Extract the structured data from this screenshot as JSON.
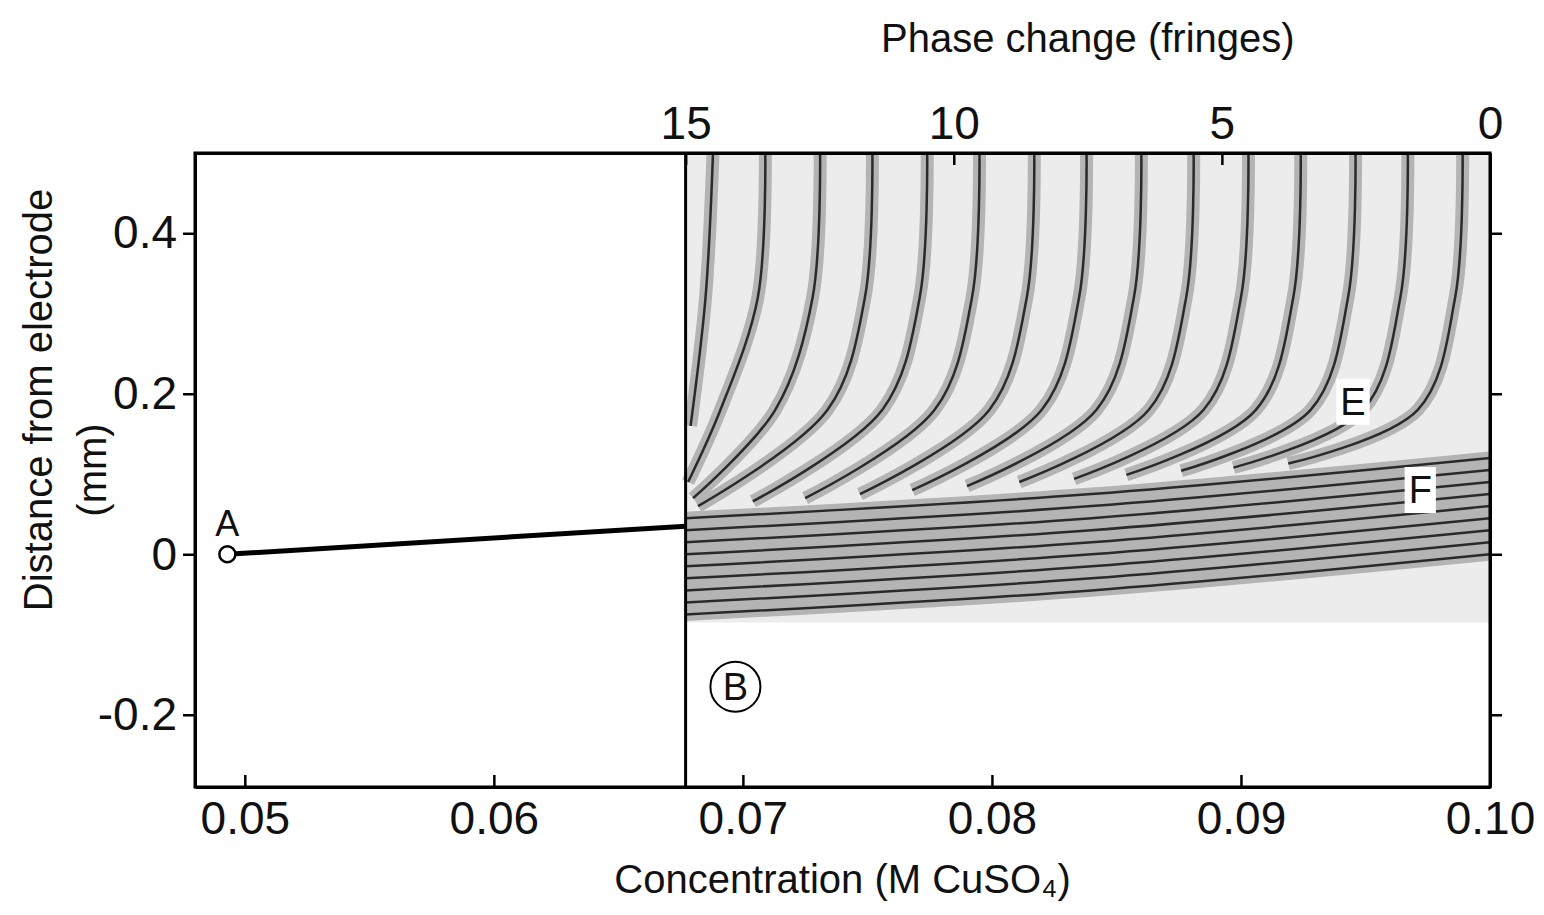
{
  "chart_data": {
    "type": "interferogram",
    "x2label": "Phase change (fringes)",
    "xlabel": "Concentration (M CuSO₄)",
    "ylabel": [
      "Distance from electrode",
      "(mm)"
    ],
    "xlim": [
      0.048,
      0.1
    ],
    "xticks": [
      0.05,
      0.06,
      0.07,
      0.08,
      0.09,
      {
        "value": 0.1,
        "label": "0.10"
      }
    ],
    "ylim": [
      -0.29,
      0.5
    ],
    "yticks": [
      -0.2,
      0,
      0.2,
      0.4
    ],
    "x2lim": [
      24.15,
      0
    ],
    "x2ticks": [
      15,
      10,
      5,
      0
    ],
    "image_region": {
      "xlim": [
        0.0677,
        0.1
      ],
      "ylim": [
        -0.085,
        0.5
      ]
    },
    "line": {
      "x": [
        0.0493,
        0.0677
      ],
      "y": [
        0,
        0.035
      ]
    },
    "points": [
      {
        "text": "A",
        "x": 0.0493,
        "y": 0,
        "marker": "circle"
      }
    ],
    "annotations": [
      {
        "text": "B",
        "x": 0.0697,
        "y": -0.165,
        "marker": "circle"
      },
      {
        "text": "E",
        "x": 0.0945,
        "y": 0.19
      },
      {
        "text": "F",
        "x": 0.0972,
        "y": 0.08
      }
    ],
    "fringes": [
      {
        "x": [
          0.0688,
          0.0685,
          0.0679
        ],
        "y": [
          0.5,
          0.32,
          0.16
        ]
      },
      {
        "x": [
          0.0709,
          0.0706,
          0.0691,
          0.0678
        ],
        "y": [
          0.5,
          0.32,
          0.18,
          0.09
        ]
      },
      {
        "x": [
          0.0731,
          0.0728,
          0.0713,
          0.068
        ],
        "y": [
          0.5,
          0.32,
          0.18,
          0.07
        ]
      },
      {
        "x": [
          0.0752,
          0.0749,
          0.0734,
          0.0682
        ],
        "y": [
          0.5,
          0.32,
          0.18,
          0.06
        ]
      },
      {
        "x": [
          0.0774,
          0.0771,
          0.0756,
          0.0704
        ],
        "y": [
          0.5,
          0.32,
          0.18,
          0.066
        ]
      },
      {
        "x": [
          0.0795,
          0.0792,
          0.0777,
          0.0725
        ],
        "y": [
          0.5,
          0.32,
          0.18,
          0.07
        ]
      },
      {
        "x": [
          0.0817,
          0.0814,
          0.0799,
          0.0747
        ],
        "y": [
          0.5,
          0.32,
          0.18,
          0.075
        ]
      },
      {
        "x": [
          0.0838,
          0.0835,
          0.082,
          0.0768
        ],
        "y": [
          0.5,
          0.32,
          0.18,
          0.08
        ]
      },
      {
        "x": [
          0.086,
          0.0857,
          0.0842,
          0.079
        ],
        "y": [
          0.5,
          0.32,
          0.18,
          0.085
        ]
      },
      {
        "x": [
          0.0881,
          0.0878,
          0.0863,
          0.0811
        ],
        "y": [
          0.5,
          0.32,
          0.18,
          0.09
        ]
      },
      {
        "x": [
          0.0903,
          0.09,
          0.0885,
          0.0833
        ],
        "y": [
          0.5,
          0.32,
          0.18,
          0.094
        ]
      },
      {
        "x": [
          0.0924,
          0.0921,
          0.0906,
          0.0854
        ],
        "y": [
          0.5,
          0.32,
          0.18,
          0.099
        ]
      },
      {
        "x": [
          0.0946,
          0.0943,
          0.0928,
          0.0876
        ],
        "y": [
          0.5,
          0.32,
          0.18,
          0.104
        ]
      },
      {
        "x": [
          0.0967,
          0.0964,
          0.0949,
          0.0897
        ],
        "y": [
          0.5,
          0.32,
          0.18,
          0.108
        ]
      },
      {
        "x": [
          0.0989,
          0.0986,
          0.0971,
          0.0919
        ],
        "y": [
          0.5,
          0.32,
          0.18,
          0.113
        ]
      },
      {
        "x": [
          0.0677,
          0.084,
          0.1
        ],
        "y": [
          0.045,
          0.075,
          0.12
        ]
      },
      {
        "x": [
          0.0677,
          0.084,
          0.1
        ],
        "y": [
          0.03,
          0.06,
          0.105
        ]
      },
      {
        "x": [
          0.0677,
          0.084,
          0.1
        ],
        "y": [
          0.015,
          0.045,
          0.09
        ]
      },
      {
        "x": [
          0.0677,
          0.084,
          0.1
        ],
        "y": [
          0,
          0.03,
          0.075
        ]
      },
      {
        "x": [
          0.0677,
          0.084,
          0.1
        ],
        "y": [
          -0.015,
          0.015,
          0.06
        ]
      },
      {
        "x": [
          0.0677,
          0.084,
          0.1
        ],
        "y": [
          -0.03,
          0,
          0.045
        ]
      },
      {
        "x": [
          0.0677,
          0.084,
          0.1
        ],
        "y": [
          -0.045,
          -0.015,
          0.03
        ]
      },
      {
        "x": [
          0.0677,
          0.084,
          0.1
        ],
        "y": [
          -0.06,
          -0.03,
          0.015
        ]
      },
      {
        "x": [
          0.0677,
          0.084,
          0.1
        ],
        "y": [
          -0.075,
          -0.045,
          0
        ]
      }
    ]
  }
}
